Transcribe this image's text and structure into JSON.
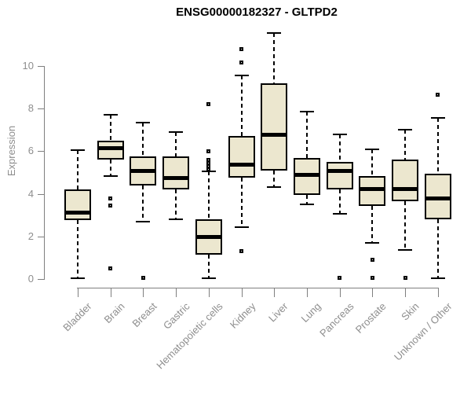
{
  "title": "ENSG00000182327 - GLTPD2",
  "chart_data": {
    "type": "boxplot",
    "title": "ENSG00000182327 - GLTPD2",
    "xlabel": "",
    "ylabel": "Expression",
    "ylim": [
      0,
      11.8
    ],
    "yticks": [
      0,
      2,
      4,
      6,
      8,
      10
    ],
    "grid": false,
    "legend": false,
    "categories": [
      "Bladder",
      "Brain",
      "Breast",
      "Gastric",
      "Hematopoietic cells",
      "Kidney",
      "Liver",
      "Lung",
      "Pancreas",
      "Prostate",
      "Skin",
      "Unknown / Other"
    ],
    "boxes": [
      {
        "name": "Bladder",
        "whisker_low": 0.05,
        "q1": 2.75,
        "median": 3.15,
        "q3": 4.2,
        "whisker_high": 6.05,
        "outliers": []
      },
      {
        "name": "Brain",
        "whisker_low": 4.85,
        "q1": 5.6,
        "median": 6.15,
        "q3": 6.5,
        "whisker_high": 7.7,
        "outliers": [
          3.8,
          3.45,
          0.5
        ]
      },
      {
        "name": "Breast",
        "whisker_low": 2.7,
        "q1": 4.4,
        "median": 5.1,
        "q3": 5.75,
        "whisker_high": 7.35,
        "outliers": [
          0.05
        ]
      },
      {
        "name": "Gastric",
        "whisker_low": 2.8,
        "q1": 4.2,
        "median": 4.75,
        "q3": 5.75,
        "whisker_high": 6.9,
        "outliers": []
      },
      {
        "name": "Hematopoietic cells",
        "whisker_low": 0.05,
        "q1": 1.15,
        "median": 2.0,
        "q3": 2.8,
        "whisker_high": 5.05,
        "outliers": [
          8.2,
          6.0,
          5.6,
          5.45,
          5.3,
          5.15
        ]
      },
      {
        "name": "Kidney",
        "whisker_low": 2.45,
        "q1": 4.75,
        "median": 5.4,
        "q3": 6.7,
        "whisker_high": 9.55,
        "outliers": [
          10.8,
          10.15,
          1.3
        ]
      },
      {
        "name": "Liver",
        "whisker_low": 4.3,
        "q1": 5.1,
        "median": 6.8,
        "q3": 9.2,
        "whisker_high": 11.55,
        "outliers": []
      },
      {
        "name": "Lung",
        "whisker_low": 3.5,
        "q1": 3.95,
        "median": 4.9,
        "q3": 5.7,
        "whisker_high": 7.85,
        "outliers": []
      },
      {
        "name": "Pancreas",
        "whisker_low": 3.05,
        "q1": 4.2,
        "median": 5.1,
        "q3": 5.5,
        "whisker_high": 6.8,
        "outliers": [
          0.05
        ]
      },
      {
        "name": "Prostate",
        "whisker_low": 1.7,
        "q1": 3.45,
        "median": 4.25,
        "q3": 4.85,
        "whisker_high": 6.1,
        "outliers": [
          0.9,
          0.05
        ]
      },
      {
        "name": "Skin",
        "whisker_low": 1.35,
        "q1": 3.65,
        "median": 4.25,
        "q3": 5.6,
        "whisker_high": 7.0,
        "outliers": [
          0.05
        ]
      },
      {
        "name": "Unknown / Other",
        "whisker_low": 0.05,
        "q1": 2.8,
        "median": 3.8,
        "q3": 4.95,
        "whisker_high": 7.55,
        "outliers": [
          8.65
        ]
      }
    ],
    "colors": {
      "box_fill": "#ECE7CF",
      "box_border": "#000000",
      "whisker": "#000000",
      "median": "#000000",
      "axis_line": "#7F7F7F",
      "tick_label": "#8E8E8E",
      "title_text": "#000000",
      "background": "#FFFFFF"
    }
  }
}
